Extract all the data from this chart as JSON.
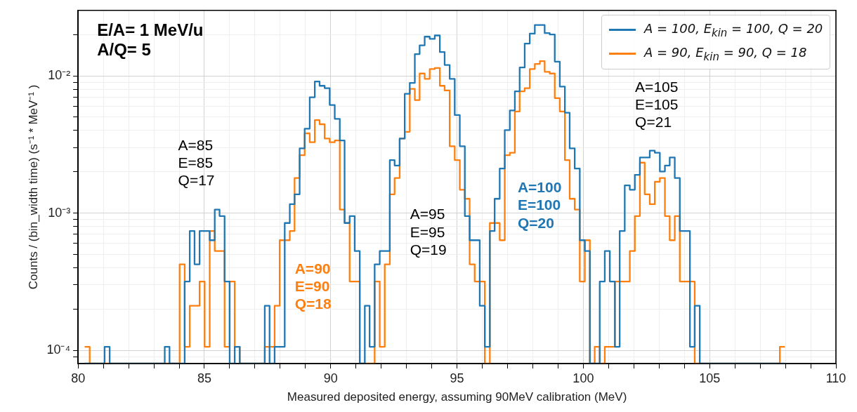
{
  "chart_data": {
    "type": "histogram",
    "xlabel": "Measured deposited energy, assuming 90MeV calibration (MeV)",
    "ylabel": "Counts / (bin_width time) (s⁻¹ * MeV⁻¹ )",
    "bins": [
      80.26,
      80.46,
      80.65,
      80.85,
      81.05,
      81.25,
      81.45,
      81.64,
      81.84,
      82.04,
      82.24,
      82.44,
      82.63,
      82.83,
      83.03,
      83.23,
      83.43,
      83.62,
      83.82,
      84.02,
      84.22,
      84.42,
      84.61,
      84.81,
      85.01,
      85.21,
      85.41,
      85.6,
      85.8,
      86,
      86.2,
      86.4,
      86.59,
      86.79,
      86.99,
      87.19,
      87.39,
      87.58,
      87.78,
      87.98,
      88.18,
      88.38,
      88.57,
      88.77,
      88.97,
      89.17,
      89.37,
      89.56,
      89.76,
      89.96,
      90.16,
      90.36,
      90.55,
      90.75,
      90.95,
      91.15,
      91.35,
      91.54,
      91.74,
      91.94,
      92.14,
      92.34,
      92.53,
      92.73,
      92.93,
      93.13,
      93.33,
      93.52,
      93.72,
      93.92,
      94.12,
      94.32,
      94.51,
      94.71,
      94.91,
      95.11,
      95.31,
      95.5,
      95.7,
      95.9,
      96.1,
      96.3,
      96.49,
      96.69,
      96.89,
      97.09,
      97.29,
      97.48,
      97.68,
      97.88,
      98.08,
      98.28,
      98.47,
      98.67,
      98.87,
      99.07,
      99.27,
      99.46,
      99.66,
      99.86,
      100.06,
      100.26,
      100.45,
      100.65,
      100.85,
      101.05,
      101.25,
      101.44,
      101.64,
      101.84,
      102.04,
      102.24,
      102.43,
      102.63,
      102.83,
      103.03,
      103.23,
      103.42,
      103.62,
      103.82,
      104.02,
      104.22,
      104.41,
      104.61,
      104.81,
      105.01,
      105.21,
      105.4,
      105.6,
      105.8,
      106,
      106.2,
      106.39,
      106.59,
      106.79,
      106.99,
      107.19,
      107.38,
      107.58,
      107.78,
      107.98
    ],
    "series": [
      {
        "name": "A = 100, E$_{kin}$ = 100, Q = 20",
        "color": "#1f77b4",
        "values": [
          null,
          null,
          null,
          null,
          0.000106,
          null,
          null,
          null,
          null,
          null,
          null,
          null,
          null,
          null,
          null,
          null,
          0.000106,
          null,
          null,
          null,
          0.000317,
          0.00074,
          0.000423,
          0.00074,
          0.00074,
          0.000634,
          0.00106,
          0.000951,
          0.000317,
          null,
          0.000106,
          null,
          null,
          null,
          null,
          null,
          0.000211,
          null,
          0.000106,
          0.000106,
          0.000846,
          0.00116,
          0.00137,
          0.00296,
          0.00412,
          0.00698,
          0.00909,
          0.00846,
          0.00814,
          0.00613,
          0.00486,
          0.00338,
          0.000846,
          0.000951,
          0.000529,
          null,
          0.000211,
          0.000106,
          0.000423,
          0.000529,
          0.000529,
          0.00243,
          0.00222,
          0.00349,
          0.0074,
          0.00888,
          0.0144,
          0.0167,
          0.0193,
          0.0186,
          0.0197,
          0.0149,
          0.012,
          0.00951,
          0.00518,
          0.00307,
          0.000951,
          0.000634,
          0.000634,
          0.000211,
          0.000106,
          0.00074,
          0.00127,
          0.00211,
          0.00402,
          0.0056,
          0.00772,
          0.0115,
          0.0172,
          0.0203,
          0.0235,
          0.0235,
          0.0205,
          0.02,
          0.0127,
          0.00835,
          0.00539,
          0.00296,
          0.00211,
          0.000634,
          0.000529,
          null,
          null,
          0.000317,
          0.000529,
          0.000317,
          0.000106,
          0.00074,
          0.00159,
          0.00148,
          0.0019,
          0.00254,
          0.00254,
          0.00285,
          0.00275,
          0.00201,
          0.00222,
          0.00254,
          0.0018,
          0.00074,
          0.00074,
          0.000106,
          0.000211,
          null,
          null,
          null,
          null,
          null,
          null,
          null,
          null,
          null,
          null,
          null,
          null,
          null,
          null,
          null,
          null,
          null
        ]
      },
      {
        "name": "A = 90, E$_{kin}$ = 90, Q = 18",
        "color": "#ff7f0e",
        "values": [
          0.000106,
          null,
          null,
          null,
          null,
          null,
          null,
          null,
          null,
          null,
          null,
          null,
          null,
          null,
          null,
          null,
          null,
          null,
          null,
          0.000423,
          0.000106,
          0.000211,
          0.000211,
          0.000317,
          0.000106,
          0.00074,
          0.000529,
          0.000529,
          0.000106,
          0.000317,
          0.000106,
          null,
          null,
          null,
          null,
          null,
          0.000106,
          0.000106,
          0.000211,
          0.000634,
          0.000634,
          0.00074,
          0.0018,
          0.00264,
          0.00381,
          0.00328,
          0.00476,
          0.00444,
          0.00349,
          0.00328,
          0.00338,
          0.00106,
          0.000846,
          0.000317,
          0.000317,
          null,
          null,
          null,
          0.000317,
          0.000106,
          0.000423,
          0.00137,
          0.0018,
          0.00349,
          0.00391,
          0.00803,
          0.00666,
          0.0104,
          0.00951,
          0.0112,
          0.0114,
          0.00846,
          0.00782,
          0.00307,
          0.00243,
          0.00148,
          0.00127,
          0.000423,
          0.000317,
          0.000317,
          null,
          0.000846,
          0.000846,
          0.000634,
          0.00264,
          0.00275,
          0.0055,
          0.00772,
          0.00814,
          0.0112,
          0.0122,
          0.0128,
          0.0107,
          0.0104,
          0.00687,
          0.0055,
          0.00243,
          0.00127,
          0.00106,
          0.000317,
          0.000634,
          null,
          0.000106,
          null,
          0.000106,
          0.000106,
          0.000317,
          0.000317,
          0.000317,
          0.000529,
          0.000951,
          0.00233,
          0.00137,
          0.00116,
          0.00169,
          0.0018,
          0.000951,
          0.000634,
          0.000951,
          0.000317,
          0.000317,
          0.000317,
          null,
          null,
          null,
          null,
          null,
          null,
          null,
          null,
          null,
          null,
          null,
          null,
          null,
          null,
          null,
          null,
          null,
          0.000106
        ]
      }
    ],
    "xlim": [
      80,
      110
    ],
    "xticks": [
      80,
      {
        "value": 81,
        "label": null
      },
      {
        "value": 82,
        "label": null
      },
      {
        "value": 83,
        "label": null
      },
      {
        "value": 84,
        "label": null
      },
      85,
      {
        "value": 86,
        "label": null
      },
      {
        "value": 87,
        "label": null
      },
      {
        "value": 88,
        "label": null
      },
      {
        "value": 89,
        "label": null
      },
      90,
      {
        "value": 91,
        "label": null
      },
      {
        "value": 92,
        "label": null
      },
      {
        "value": 93,
        "label": null
      },
      {
        "value": 94,
        "label": null
      },
      95,
      {
        "value": 96,
        "label": null
      },
      {
        "value": 97,
        "label": null
      },
      {
        "value": 98,
        "label": null
      },
      {
        "value": 99,
        "label": null
      },
      100,
      {
        "value": 101,
        "label": null
      },
      {
        "value": 102,
        "label": null
      },
      {
        "value": 103,
        "label": null
      },
      {
        "value": 104,
        "label": null
      },
      105,
      {
        "value": 106,
        "label": null
      },
      {
        "value": 107,
        "label": null
      },
      {
        "value": 108,
        "label": null
      },
      {
        "value": 109,
        "label": null
      },
      110
    ],
    "ylim": [
      8e-05,
      0.03
    ],
    "yticks": [
      {
        "value": 9e-05,
        "label": null
      },
      {
        "value": 0.0001,
        "label": "10⁻⁴"
      },
      {
        "value": 0.0002,
        "label": null
      },
      {
        "value": 0.0003,
        "label": null
      },
      {
        "value": 0.0004,
        "label": null
      },
      {
        "value": 0.0005,
        "label": null
      },
      {
        "value": 0.0006,
        "label": null
      },
      {
        "value": 0.0007,
        "label": null
      },
      {
        "value": 0.0008,
        "label": null
      },
      {
        "value": 0.0009,
        "label": null
      },
      {
        "value": 0.001,
        "label": "10⁻³"
      },
      {
        "value": 0.002,
        "label": null
      },
      {
        "value": 0.003,
        "label": null
      },
      {
        "value": 0.004,
        "label": null
      },
      {
        "value": 0.005,
        "label": null
      },
      {
        "value": 0.006,
        "label": null
      },
      {
        "value": 0.007,
        "label": null
      },
      {
        "value": 0.008,
        "label": null
      },
      {
        "value": 0.009,
        "label": null
      },
      {
        "value": 0.01,
        "label": "10⁻²"
      },
      {
        "value": 0.02,
        "label": null
      }
    ],
    "log": true,
    "grid": true,
    "legend": "top right",
    "annotations": [
      "E/A= 1 MeV/u\nA/Q= 5",
      "A=85\nE=85\nQ=17",
      "A=90\nE=90\nQ=18",
      "A=95\nE=95\nQ=19",
      "A=100\nE=100\nQ=20",
      "A=105\nE=105\nQ=21"
    ]
  }
}
